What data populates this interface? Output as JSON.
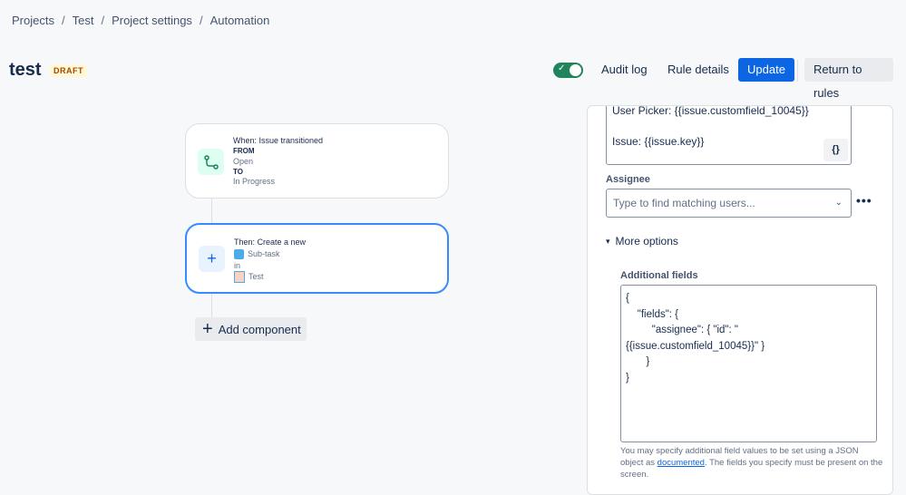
{
  "breadcrumb": [
    "Projects",
    "Test",
    "Project settings",
    "Automation"
  ],
  "rule": {
    "title": "test",
    "status": "DRAFT",
    "enabled": true
  },
  "header": {
    "audit_log": "Audit log",
    "rule_details": "Rule details",
    "update": "Update",
    "return_to_rules": "Return to rules"
  },
  "canvas": {
    "trigger": {
      "title": "When: Issue transitioned",
      "from_label": "FROM",
      "from": "Open",
      "to_label": "TO",
      "to": "In Progress"
    },
    "action": {
      "title": "Then: Create a new",
      "issue_type": "Sub-task",
      "in_label": "in",
      "project": "Test"
    },
    "add_component": "Add component"
  },
  "panel": {
    "description_lines": [
      "User Picker: {{issue.customfield_10045}}",
      "",
      "Issue: {{issue.key}}"
    ],
    "smart_values_button": "{}",
    "assignee_label": "Assignee",
    "assignee_placeholder": "Type to find matching users...",
    "more_options": "More options",
    "additional_fields_label": "Additional fields",
    "additional_fields_value": "{\n    \"fields\": {\n         \"assignee\": { \"id\": \"\n{{issue.customfield_10045}}\" }\n       }\n}",
    "help_prefix": "You may specify additional field values to be set using a JSON object as ",
    "help_link": "documented",
    "help_suffix": ". The fields you specify must be present on the screen."
  },
  "colors": {
    "primary": "#0c66e4",
    "toggle_on": "#1f845a",
    "draft_bg": "#fff7d6",
    "draft_text": "#a54800",
    "selected_border": "#388bff"
  }
}
